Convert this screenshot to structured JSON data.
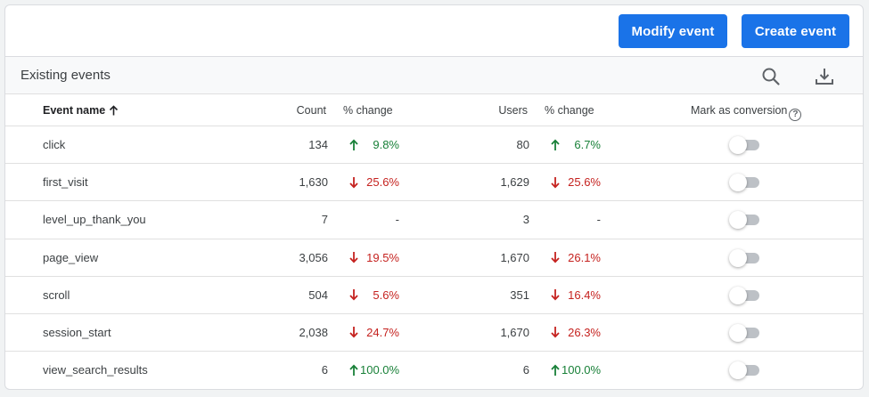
{
  "toolbar": {
    "modify_label": "Modify event",
    "create_label": "Create event"
  },
  "section": {
    "title": "Existing events",
    "search_icon": "search-icon",
    "download_icon": "download-icon"
  },
  "columns": {
    "name": "Event name",
    "count": "Count",
    "count_change": "% change",
    "users": "Users",
    "users_change": "% change",
    "conversion": "Mark as conversion",
    "help": "?"
  },
  "colors": {
    "accent": "#1a73e8",
    "up": "#188038",
    "down": "#c5221f",
    "toggle_off": "#bdc1c6"
  },
  "rows": [
    {
      "name": "click",
      "count": "134",
      "count_change": "9.8%",
      "count_dir": "up",
      "users": "80",
      "users_change": "6.7%",
      "users_dir": "up",
      "conversion": false
    },
    {
      "name": "first_visit",
      "count": "1,630",
      "count_change": "25.6%",
      "count_dir": "down",
      "users": "1,629",
      "users_change": "25.6%",
      "users_dir": "down",
      "conversion": false
    },
    {
      "name": "level_up_thank_you",
      "count": "7",
      "count_change": "-",
      "count_dir": "none",
      "users": "3",
      "users_change": "-",
      "users_dir": "none",
      "conversion": false
    },
    {
      "name": "page_view",
      "count": "3,056",
      "count_change": "19.5%",
      "count_dir": "down",
      "users": "1,670",
      "users_change": "26.1%",
      "users_dir": "down",
      "conversion": false
    },
    {
      "name": "scroll",
      "count": "504",
      "count_change": "5.6%",
      "count_dir": "down",
      "users": "351",
      "users_change": "16.4%",
      "users_dir": "down",
      "conversion": false
    },
    {
      "name": "session_start",
      "count": "2,038",
      "count_change": "24.7%",
      "count_dir": "down",
      "users": "1,670",
      "users_change": "26.3%",
      "users_dir": "down",
      "conversion": false
    },
    {
      "name": "view_search_results",
      "count": "6",
      "count_change": "100.0%",
      "count_dir": "up",
      "users": "6",
      "users_change": "100.0%",
      "users_dir": "up",
      "conversion": false
    }
  ]
}
